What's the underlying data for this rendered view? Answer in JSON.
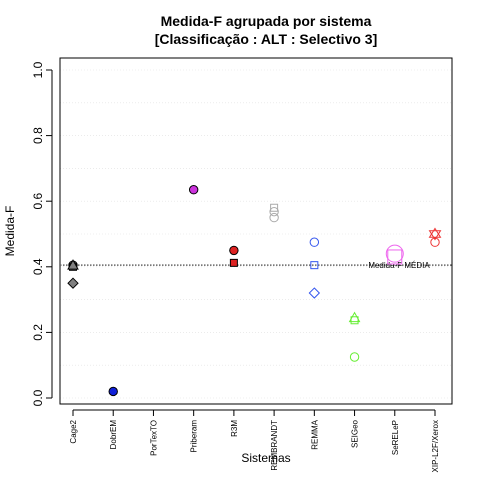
{
  "chart_data": {
    "type": "scatter",
    "title": "Medida-F agrupada por sistema",
    "subtitle": "[Classificação : ALT : Selectivo 3]",
    "xlabel": "Sistemas",
    "ylabel": "Medida-F",
    "ylim": [
      0,
      1
    ],
    "yticks": [
      "0.0",
      "0.2",
      "0.4",
      "0.6",
      "0.8",
      "1.0"
    ],
    "grid": true,
    "categories": [
      "Cage2",
      "DobrEM",
      "PorTexTO",
      "Priberam",
      "R3M",
      "REMBRANDT",
      "REMMA",
      "SEIGeo",
      "SeRELeP",
      "XIP-L2F/Xerox"
    ],
    "reference": {
      "label": "Medida-F MÉDIA",
      "value": 0.405
    },
    "points": [
      {
        "system": "Cage2",
        "y": 0.405,
        "shape": "circle",
        "color": "#808080",
        "filled": true
      },
      {
        "system": "Cage2",
        "y": 0.4,
        "shape": "square",
        "color": "#808080",
        "filled": true
      },
      {
        "system": "Cage2",
        "y": 0.405,
        "shape": "triangle",
        "color": "#808080",
        "filled": true
      },
      {
        "system": "Cage2",
        "y": 0.35,
        "shape": "diamond",
        "color": "#808080",
        "filled": true
      },
      {
        "system": "DobrEM",
        "y": 0.02,
        "shape": "circle",
        "color": "#1020d8",
        "filled": true
      },
      {
        "system": "Priberam",
        "y": 0.635,
        "shape": "circle",
        "color": "#cc33dd",
        "filled": true
      },
      {
        "system": "R3M",
        "y": 0.45,
        "shape": "circle",
        "color": "#dd2222",
        "filled": true
      },
      {
        "system": "R3M",
        "y": 0.412,
        "shape": "square",
        "color": "#dd2222",
        "filled": true
      },
      {
        "system": "REMBRANDT",
        "y": 0.58,
        "shape": "square",
        "color": "#aaaaaa",
        "filled": false
      },
      {
        "system": "REMBRANDT",
        "y": 0.568,
        "shape": "circle",
        "color": "#aaaaaa",
        "filled": false
      },
      {
        "system": "REMBRANDT",
        "y": 0.55,
        "shape": "circle",
        "color": "#aaaaaa",
        "filled": false
      },
      {
        "system": "REMMA",
        "y": 0.475,
        "shape": "circle",
        "color": "#3355ee",
        "filled": false
      },
      {
        "system": "REMMA",
        "y": 0.405,
        "shape": "square",
        "color": "#3355ee",
        "filled": false
      },
      {
        "system": "REMMA",
        "y": 0.32,
        "shape": "diamond",
        "color": "#3355ee",
        "filled": false
      },
      {
        "system": "SEIGeo",
        "y": 0.245,
        "shape": "triangle",
        "color": "#66ee33",
        "filled": false
      },
      {
        "system": "SEIGeo",
        "y": 0.237,
        "shape": "square",
        "color": "#66ee33",
        "filled": false
      },
      {
        "system": "SEIGeo",
        "y": 0.125,
        "shape": "circle",
        "color": "#66ee33",
        "filled": false
      },
      {
        "system": "SeRELeP",
        "y": 0.44,
        "shape": "circle-large",
        "color": "#ee66ee",
        "filled": false
      },
      {
        "system": "SeRELeP",
        "y": 0.43,
        "shape": "square-large",
        "color": "#ee66ee",
        "filled": false
      },
      {
        "system": "XIP-L2F/Xerox",
        "y": 0.5,
        "shape": "star",
        "color": "#ee3333",
        "filled": false
      },
      {
        "system": "XIP-L2F/Xerox",
        "y": 0.475,
        "shape": "circle",
        "color": "#ee3333",
        "filled": false
      }
    ]
  }
}
